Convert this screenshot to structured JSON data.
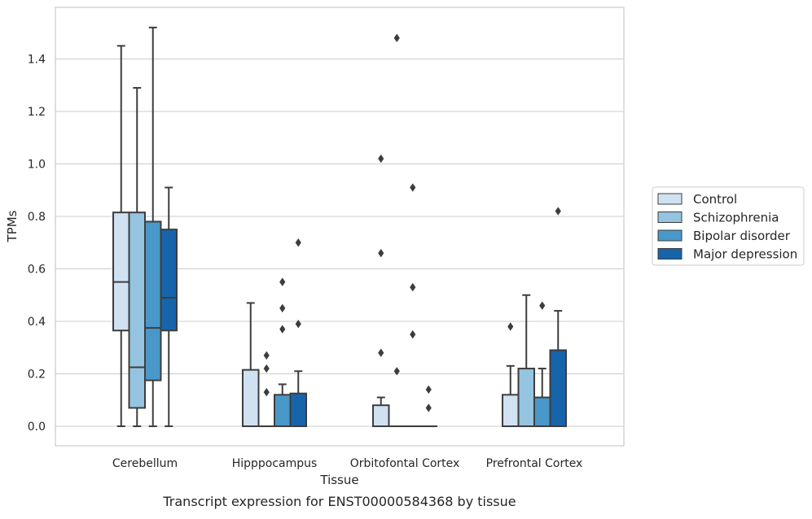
{
  "caption": "Transcript expression for ENST00000584368 by tissue",
  "chart_data": {
    "type": "box",
    "xlabel": "Tissue",
    "ylabel": "TPMs",
    "ylim": [
      -0.07,
      1.59
    ],
    "yticks": [
      0.0,
      0.2,
      0.4,
      0.6,
      0.8,
      1.0,
      1.2,
      1.4
    ],
    "ytick_labels": [
      "0.0",
      "0.2",
      "0.4",
      "0.6",
      "0.8",
      "1.0",
      "1.2",
      "1.4"
    ],
    "grid": "horizontal",
    "legend_position": "right",
    "categories": [
      "Cerebellum",
      "Hipppocampus",
      "Orbitofontal Cortex",
      "Prefrontal Cortex"
    ],
    "series": [
      {
        "name": "Control",
        "color": "#d0e1f2",
        "boxes": [
          {
            "whislo": 0.0,
            "q1": 0.365,
            "median": 0.55,
            "q3": 0.815,
            "whishi": 1.45,
            "fliers": []
          },
          {
            "whislo": 0.0,
            "q1": 0.0,
            "median": 0.0,
            "q3": 0.215,
            "whishi": 0.47,
            "fliers": []
          },
          {
            "whislo": 0.0,
            "q1": 0.0,
            "median": 0.0,
            "q3": 0.08,
            "whishi": 0.11,
            "fliers": [
              0.28,
              0.66,
              1.02
            ]
          },
          {
            "whislo": 0.0,
            "q1": 0.0,
            "median": 0.0,
            "q3": 0.12,
            "whishi": 0.23,
            "fliers": [
              0.38
            ]
          }
        ]
      },
      {
        "name": "Schizophrenia",
        "color": "#94c4df",
        "boxes": [
          {
            "whislo": 0.0,
            "q1": 0.07,
            "median": 0.225,
            "q3": 0.815,
            "whishi": 1.29,
            "fliers": []
          },
          {
            "whislo": 0.0,
            "q1": 0.0,
            "median": 0.0,
            "q3": 0.0,
            "whishi": 0.0,
            "fliers": [
              0.13,
              0.22,
              0.27
            ]
          },
          {
            "whislo": 0.0,
            "q1": 0.0,
            "median": 0.0,
            "q3": 0.0,
            "whishi": 0.0,
            "fliers": [
              0.21,
              1.48
            ]
          },
          {
            "whislo": 0.0,
            "q1": 0.0,
            "median": 0.0,
            "q3": 0.22,
            "whishi": 0.5,
            "fliers": []
          }
        ]
      },
      {
        "name": "Bipolar disorder",
        "color": "#4a98c9",
        "boxes": [
          {
            "whislo": 0.0,
            "q1": 0.175,
            "median": 0.375,
            "q3": 0.78,
            "whishi": 1.52,
            "fliers": []
          },
          {
            "whislo": 0.0,
            "q1": 0.0,
            "median": 0.0,
            "q3": 0.12,
            "whishi": 0.16,
            "fliers": [
              0.37,
              0.45,
              0.55
            ]
          },
          {
            "whislo": 0.0,
            "q1": 0.0,
            "median": 0.0,
            "q3": 0.0,
            "whishi": 0.0,
            "fliers": [
              0.35,
              0.53,
              0.91
            ]
          },
          {
            "whislo": 0.0,
            "q1": 0.0,
            "median": 0.0,
            "q3": 0.11,
            "whishi": 0.22,
            "fliers": [
              0.46
            ]
          }
        ]
      },
      {
        "name": "Major depression",
        "color": "#1764ab",
        "boxes": [
          {
            "whislo": 0.0,
            "q1": 0.365,
            "median": 0.49,
            "q3": 0.75,
            "whishi": 0.91,
            "fliers": []
          },
          {
            "whislo": 0.0,
            "q1": 0.0,
            "median": 0.0,
            "q3": 0.125,
            "whishi": 0.21,
            "fliers": [
              0.39,
              0.7
            ]
          },
          {
            "whislo": 0.0,
            "q1": 0.0,
            "median": 0.0,
            "q3": 0.0,
            "whishi": 0.0,
            "fliers": [
              0.07,
              0.14
            ]
          },
          {
            "whislo": 0.0,
            "q1": 0.0,
            "median": 0.0,
            "q3": 0.29,
            "whishi": 0.44,
            "fliers": [
              0.82
            ]
          }
        ]
      }
    ]
  }
}
